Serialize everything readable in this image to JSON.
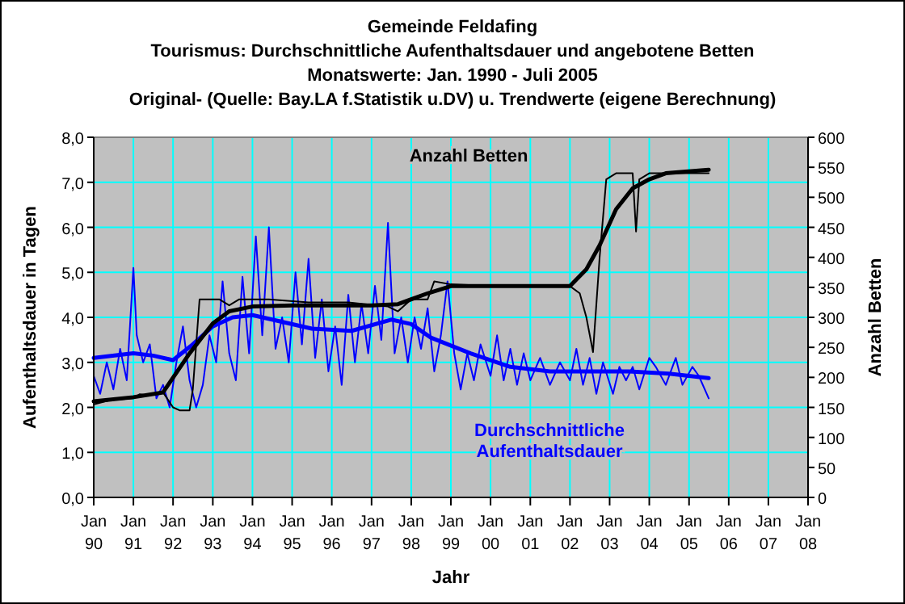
{
  "chart_data": {
    "type": "line",
    "title": "Gemeinde Feldafing",
    "subtitle": "Tourismus: Durchschnittliche Aufenthaltsdauer und angebotene Betten\nMonatswerte: Jan. 1990 - Juli 2005\nOriginal- (Quelle: Bay.LA f.Statistik u.DV) u. Trendwerte (eigene Berechnung)",
    "xlabel": "Jahr",
    "ylabel": "Aufenthaltsdauer in Tagen",
    "y2label": "Anzahl Betten",
    "xlim": [
      "1990-01",
      "2008-01"
    ],
    "xticks": [
      {
        "value": "1990-01",
        "label": "Jan 90"
      },
      {
        "value": "1991-01",
        "label": "Jan 91"
      },
      {
        "value": "1992-01",
        "label": "Jan 92"
      },
      {
        "value": "1993-01",
        "label": "Jan 93"
      },
      {
        "value": "1994-01",
        "label": "Jan 94"
      },
      {
        "value": "1995-01",
        "label": "Jan 95"
      },
      {
        "value": "1996-01",
        "label": "Jan 96"
      },
      {
        "value": "1997-01",
        "label": "Jan 97"
      },
      {
        "value": "1998-01",
        "label": "Jan 98"
      },
      {
        "value": "1999-01",
        "label": "Jan 99"
      },
      {
        "value": "2000-01",
        "label": "Jan 00"
      },
      {
        "value": "2001-01",
        "label": "Jan 01"
      },
      {
        "value": "2002-01",
        "label": "Jan 02"
      },
      {
        "value": "2003-01",
        "label": "Jan 03"
      },
      {
        "value": "2004-01",
        "label": "Jan 04"
      },
      {
        "value": "2005-01",
        "label": "Jan 05"
      },
      {
        "value": "2006-01",
        "label": "Jan 06"
      },
      {
        "value": "2007-01",
        "label": "Jan 07"
      },
      {
        "value": "2008-01",
        "label": "Jan 08"
      }
    ],
    "ylim": [
      0,
      8
    ],
    "yticks": [
      {
        "value": 0,
        "label": "0,0"
      },
      {
        "value": 1,
        "label": "1,0"
      },
      {
        "value": 2,
        "label": "2,0"
      },
      {
        "value": 3,
        "label": "3,0"
      },
      {
        "value": 4,
        "label": "4,0"
      },
      {
        "value": 5,
        "label": "5,0"
      },
      {
        "value": 6,
        "label": "6,0"
      },
      {
        "value": 7,
        "label": "7,0"
      },
      {
        "value": 8,
        "label": "8,0"
      }
    ],
    "y2lim": [
      0,
      600
    ],
    "y2ticks": [
      0,
      50,
      100,
      150,
      200,
      250,
      300,
      350,
      400,
      450,
      500,
      550,
      600
    ],
    "grid": true,
    "line_style": "solid",
    "marker": "none",
    "series": [
      {
        "name": "Durchschnittliche Aufenthaltsdauer",
        "color": "#0000ff",
        "x": [
          "1990-01",
          "1990-03",
          "1990-05",
          "1990-07",
          "1990-09",
          "1990-11",
          "1991-01",
          "1991-02",
          "1991-04",
          "1991-06",
          "1991-08",
          "1991-10",
          "1991-12",
          "1992-02",
          "1992-04",
          "1992-06",
          "1992-08",
          "1992-10",
          "1992-12",
          "1993-02",
          "1993-04",
          "1993-06",
          "1993-08",
          "1993-10",
          "1993-12",
          "1994-02",
          "1994-04",
          "1994-06",
          "1994-08",
          "1994-10",
          "1994-12",
          "1995-02",
          "1995-04",
          "1995-06",
          "1995-08",
          "1995-10",
          "1995-12",
          "1996-02",
          "1996-04",
          "1996-06",
          "1996-08",
          "1996-10",
          "1996-12",
          "1997-02",
          "1997-04",
          "1997-06",
          "1997-08",
          "1997-10",
          "1997-12",
          "1998-02",
          "1998-04",
          "1998-06",
          "1998-08",
          "1998-10",
          "1998-12",
          "1999-02",
          "1999-04",
          "1999-06",
          "1999-08",
          "1999-10",
          "2000-01",
          "2000-03",
          "2000-05",
          "2000-07",
          "2000-09",
          "2000-11",
          "2001-01",
          "2001-04",
          "2001-07",
          "2001-10",
          "2002-01",
          "2002-03",
          "2002-05",
          "2002-07",
          "2002-09",
          "2002-11",
          "2003-02",
          "2003-04",
          "2003-06",
          "2003-08",
          "2003-10",
          "2004-01",
          "2004-03",
          "2004-06",
          "2004-09",
          "2004-11",
          "2005-02",
          "2005-04",
          "2005-07"
        ],
        "values": [
          2.7,
          2.3,
          3.0,
          2.4,
          3.3,
          2.6,
          5.1,
          3.6,
          3.0,
          3.4,
          2.2,
          2.5,
          2.0,
          3.0,
          3.8,
          2.6,
          2.0,
          2.5,
          3.6,
          3.0,
          4.8,
          3.2,
          2.6,
          4.9,
          3.2,
          5.8,
          3.6,
          6.0,
          3.3,
          4.0,
          3.0,
          5.0,
          3.4,
          5.3,
          3.1,
          4.4,
          2.8,
          3.8,
          2.5,
          4.5,
          3.0,
          4.3,
          3.2,
          4.7,
          3.5,
          6.1,
          3.2,
          4.0,
          3.0,
          4.0,
          3.3,
          4.2,
          2.8,
          3.6,
          4.8,
          3.2,
          2.4,
          3.2,
          2.6,
          3.4,
          2.7,
          3.6,
          2.6,
          3.3,
          2.5,
          3.2,
          2.6,
          3.1,
          2.5,
          3.0,
          2.6,
          3.3,
          2.5,
          3.1,
          2.3,
          3.0,
          2.3,
          2.9,
          2.6,
          2.9,
          2.4,
          3.1,
          2.9,
          2.5,
          3.1,
          2.5,
          2.9,
          2.7,
          2.2
        ]
      },
      {
        "color": "#0000ff",
        "x": [
          "1990-01",
          "1991-01",
          "1991-07",
          "1992-01",
          "1992-07",
          "1993-01",
          "1993-07",
          "1994-01",
          "1994-07",
          "1995-07",
          "1996-07",
          "1997-07",
          "1998-01",
          "1998-07",
          "1999-07",
          "2000-07",
          "2001-07",
          "2002-07",
          "2003-07",
          "2004-07",
          "2005-07"
        ],
        "values": [
          3.1,
          3.2,
          3.15,
          3.05,
          3.4,
          3.8,
          4.0,
          4.05,
          3.95,
          3.75,
          3.7,
          3.95,
          3.85,
          3.55,
          3.2,
          2.9,
          2.8,
          2.8,
          2.8,
          2.75,
          2.65
        ]
      },
      {
        "name": "Anzahl Betten",
        "color": "#000000",
        "axis": "y2",
        "x": [
          "1990-01",
          "1990-06",
          "1991-01",
          "1991-03",
          "1991-06",
          "1991-10",
          "1992-01",
          "1992-03",
          "1992-06",
          "1992-07",
          "1992-09",
          "1993-03",
          "1993-06",
          "1993-09",
          "1994-06",
          "1995-06",
          "1996-06",
          "1997-06",
          "1997-09",
          "1998-01",
          "1998-06",
          "1998-08",
          "1999-01",
          "2000-01",
          "2001-01",
          "2002-01",
          "2002-04",
          "2002-06",
          "2002-08",
          "2002-10",
          "2002-12",
          "2003-03",
          "2003-08",
          "2003-09",
          "2003-10",
          "2004-01",
          "2005-07"
        ],
        "values": [
          155,
          162,
          165,
          172,
          170,
          175,
          150,
          145,
          145,
          180,
          330,
          330,
          320,
          330,
          330,
          325,
          325,
          318,
          310,
          330,
          330,
          360,
          355,
          352,
          352,
          352,
          340,
          300,
          242,
          400,
          530,
          540,
          540,
          443,
          530,
          540,
          540
        ]
      },
      {
        "color": "#000000",
        "axis": "y2",
        "x": [
          "1990-01",
          "1991-01",
          "1991-10",
          "1992-06",
          "1993-01",
          "1993-06",
          "1994-01",
          "1995-01",
          "1996-01",
          "1997-01",
          "1997-09",
          "1998-06",
          "1999-01",
          "2000-01",
          "2001-01",
          "2002-01",
          "2002-06",
          "2002-10",
          "2003-03",
          "2003-08",
          "2004-01",
          "2004-06",
          "2005-07"
        ],
        "values": [
          160,
          167,
          175,
          240,
          290,
          310,
          318,
          320,
          320,
          320,
          322,
          340,
          352,
          352,
          352,
          352,
          380,
          420,
          480,
          515,
          530,
          540,
          546
        ]
      }
    ]
  }
}
